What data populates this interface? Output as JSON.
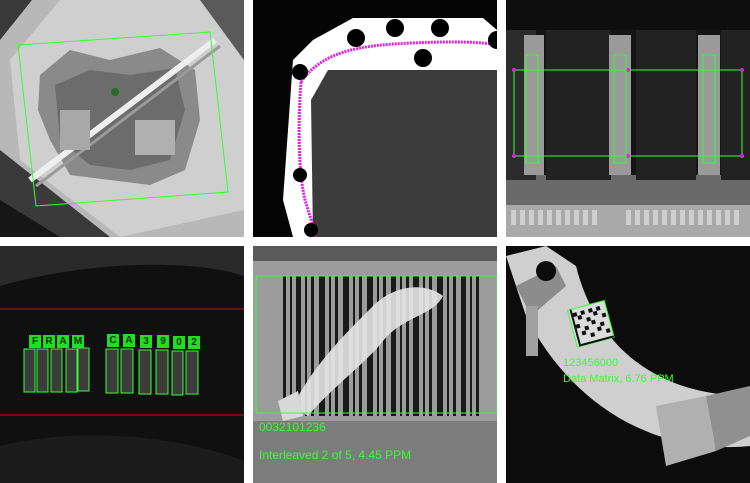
{
  "colors": {
    "overlay_green": "#33ff33",
    "overlay_magenta": "#e020e0",
    "guide_red": "#cc1111"
  },
  "panels": {
    "part_location": {
      "icon": "part-outline-icon"
    },
    "gasket_trace": {
      "icon": "bead-trace-icon"
    },
    "pcb_inspection": {
      "icon": "connector-pins-icon"
    },
    "ocr_reading": {
      "characters": [
        "F",
        "R",
        "A",
        "M",
        "C",
        "A",
        "3",
        "9",
        "0",
        "2"
      ]
    },
    "barcode_reading": {
      "decoded_value": "0032101236",
      "symbology_text": "Interleaved 2 of 5, 4.45 PPM"
    },
    "datamatrix_reading": {
      "decoded_value": "123456000",
      "symbology_text": "Data Matrix, 6.76 PPM"
    }
  }
}
